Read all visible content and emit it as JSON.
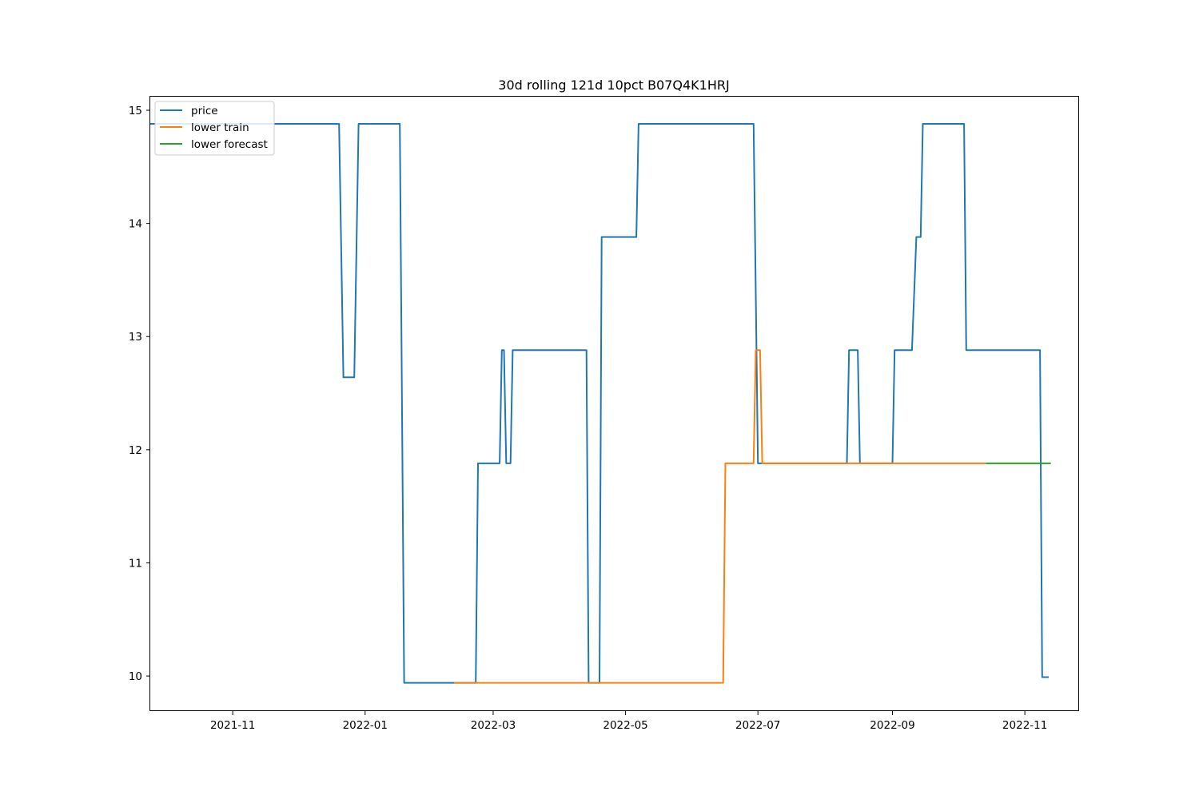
{
  "chart_data": {
    "type": "line",
    "title": "30d rolling 121d 10pct B07Q4K1HRJ",
    "xlabel": "",
    "ylabel": "",
    "xlim": [
      "2021-09-24",
      "2022-11-26"
    ],
    "ylim": [
      9.69,
      15.12
    ],
    "xticks": [
      "2021-11",
      "2022-01",
      "2022-03",
      "2022-05",
      "2022-07",
      "2022-09",
      "2022-11"
    ],
    "yticks": [
      10,
      11,
      12,
      13,
      14,
      15
    ],
    "grid": false,
    "legend_position": "top-left",
    "series": [
      {
        "name": "price",
        "color": "#1f77b4",
        "points": [
          [
            "2021-09-24",
            14.88
          ],
          [
            "2021-12-20",
            14.88
          ],
          [
            "2021-12-22",
            12.64
          ],
          [
            "2021-12-27",
            12.64
          ],
          [
            "2021-12-29",
            14.88
          ],
          [
            "2022-01-17",
            14.88
          ],
          [
            "2022-01-19",
            9.94
          ],
          [
            "2022-02-21",
            9.94
          ],
          [
            "2022-02-22",
            11.88
          ],
          [
            "2022-03-04",
            11.88
          ],
          [
            "2022-03-05",
            12.88
          ],
          [
            "2022-03-06",
            12.88
          ],
          [
            "2022-03-07",
            11.88
          ],
          [
            "2022-03-09",
            11.88
          ],
          [
            "2022-03-10",
            12.88
          ],
          [
            "2022-04-13",
            12.88
          ],
          [
            "2022-04-14",
            9.94
          ],
          [
            "2022-04-19",
            9.94
          ],
          [
            "2022-04-20",
            13.88
          ],
          [
            "2022-05-06",
            13.88
          ],
          [
            "2022-05-07",
            14.88
          ],
          [
            "2022-06-29",
            14.88
          ],
          [
            "2022-07-01",
            11.88
          ],
          [
            "2022-08-11",
            11.88
          ],
          [
            "2022-08-12",
            12.88
          ],
          [
            "2022-08-16",
            12.88
          ],
          [
            "2022-08-17",
            11.88
          ],
          [
            "2022-09-01",
            11.88
          ],
          [
            "2022-09-02",
            12.88
          ],
          [
            "2022-09-10",
            12.88
          ],
          [
            "2022-09-12",
            13.88
          ],
          [
            "2022-09-14",
            13.88
          ],
          [
            "2022-09-15",
            14.88
          ],
          [
            "2022-10-04",
            14.88
          ],
          [
            "2022-10-05",
            12.88
          ],
          [
            "2022-11-08",
            12.88
          ],
          [
            "2022-11-09",
            9.99
          ],
          [
            "2022-11-12",
            9.99
          ]
        ]
      },
      {
        "name": "lower train",
        "color": "#ff7f0e",
        "points": [
          [
            "2022-02-11",
            9.94
          ],
          [
            "2022-06-15",
            9.94
          ],
          [
            "2022-06-16",
            11.88
          ],
          [
            "2022-06-29",
            11.88
          ],
          [
            "2022-06-30",
            12.88
          ],
          [
            "2022-07-02",
            12.88
          ],
          [
            "2022-07-03",
            11.88
          ],
          [
            "2022-10-14",
            11.88
          ]
        ]
      },
      {
        "name": "lower forecast",
        "color": "#2ca02c",
        "points": [
          [
            "2022-10-14",
            11.88
          ],
          [
            "2022-11-13",
            11.88
          ]
        ]
      }
    ]
  }
}
